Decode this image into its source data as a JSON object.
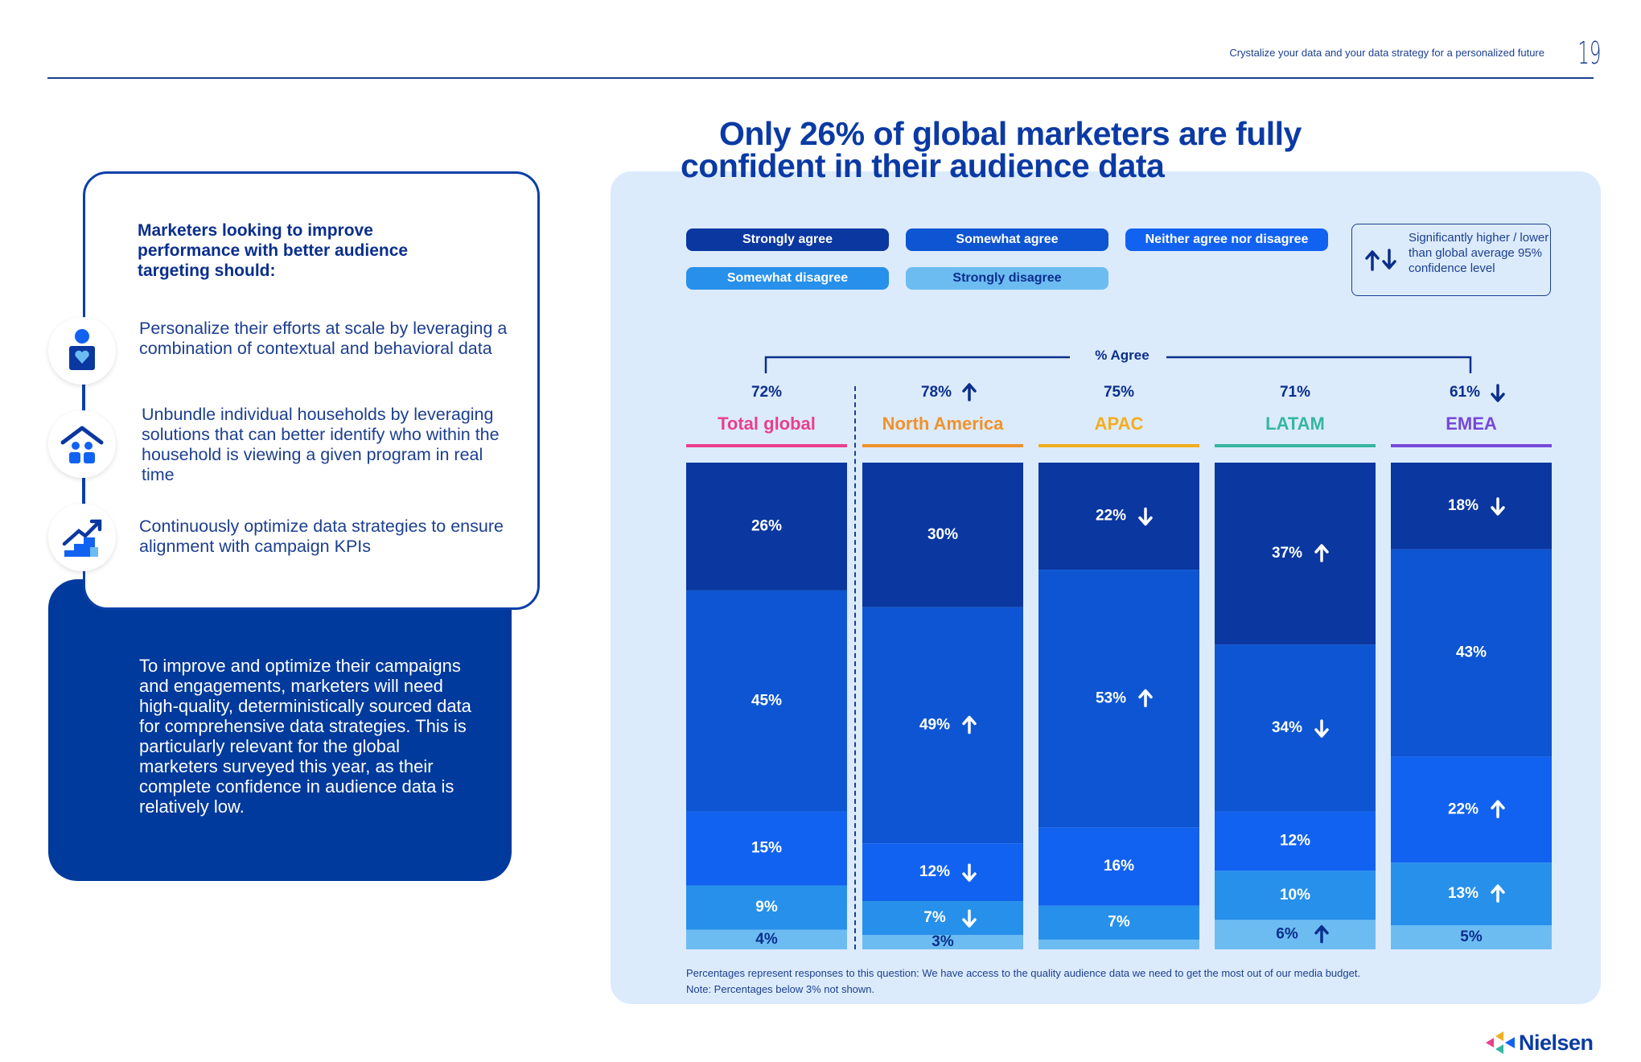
{
  "header": {
    "text": "Crystalize your data and your data strategy for a personalized future",
    "page_number": "19"
  },
  "left": {
    "heading": "Marketers looking to improve performance with better audience targeting should:",
    "tips": [
      {
        "icon": "person-heart-icon",
        "text": "Personalize their efforts at scale by leveraging a combination of contextual and behavioral data"
      },
      {
        "icon": "household-icon",
        "text": "Unbundle individual households by leveraging solutions that can better identify who within the household is viewing a given program in real time"
      },
      {
        "icon": "growth-stairs-icon",
        "text": "Continuously optimize data strategies to ensure alignment with campaign KPIs"
      }
    ],
    "body": "To improve and optimize their campaigns and engagements, marketers will need high-quality, deterministically sourced data for comprehensive data strategies. This is particularly relevant for the global marketers surveyed this year, as their complete confidence in audience data is relatively low."
  },
  "chart": {
    "title_line1": "Only 26% of global marketers are fully",
    "title_line2": "confident in their audience data",
    "significance_note": "Significantly higher / lower than global average 95% confidence level",
    "agree_label": "% Agree",
    "footnote1": "Percentages represent responses to this question: We have access to the quality audience data we need to get the most out of our media budget.",
    "footnote2": "Note: Percentages below 3% not shown."
  },
  "colors": {
    "strongly_agree": "#0a37a0",
    "somewhat_agree": "#0d55d3",
    "neither": "#1262f2",
    "somewhat_disagree": "#2790ea",
    "strongly_disagree": "#6cbcf2",
    "total_global": "#ea3f8e",
    "north_america": "#f0922b",
    "apac": "#f3ad1d",
    "latam": "#35b6a3",
    "emea": "#7548d9"
  },
  "chart_data": {
    "type": "bar",
    "stacked": true,
    "normalized_percent": true,
    "categories": [
      "Total global",
      "North America",
      "APAC",
      "LATAM",
      "EMEA"
    ],
    "agree_totals": [
      "72%",
      "78%",
      "75%",
      "71%",
      "61%"
    ],
    "agree_significance": [
      "",
      "up",
      "",
      "",
      "down"
    ],
    "series": [
      {
        "name": "Strongly agree",
        "values": [
          26,
          30,
          22,
          37,
          18
        ],
        "labels": [
          "26%",
          "30%",
          "22%",
          "37%",
          "18%"
        ],
        "significance": [
          "",
          "",
          "down",
          "up",
          "down"
        ],
        "color": "#0a37a0"
      },
      {
        "name": "Somewhat agree",
        "values": [
          45,
          49,
          53,
          34,
          43
        ],
        "labels": [
          "45%",
          "49%",
          "53%",
          "34%",
          "43%"
        ],
        "significance": [
          "",
          "up",
          "up",
          "down",
          ""
        ],
        "color": "#0d55d3"
      },
      {
        "name": "Neither agree nor disagree",
        "values": [
          15,
          12,
          16,
          12,
          22
        ],
        "labels": [
          "15%",
          "12%",
          "16%",
          "12%",
          "22%"
        ],
        "significance": [
          "",
          "down",
          "",
          "",
          "up"
        ],
        "color": "#1262f2"
      },
      {
        "name": "Somewhat disagree",
        "values": [
          9,
          7,
          7,
          10,
          13
        ],
        "labels": [
          "9%",
          "7%",
          "7%",
          "10%",
          "13%"
        ],
        "significance": [
          "",
          "down",
          "",
          "",
          "up"
        ],
        "color": "#2790ea"
      },
      {
        "name": "Strongly disagree",
        "values": [
          4,
          3,
          2,
          6,
          5
        ],
        "labels": [
          "4%",
          "3%",
          "",
          "6%",
          "5%"
        ],
        "significance": [
          "",
          "",
          "",
          "up",
          ""
        ],
        "color": "#6cbcf2"
      }
    ],
    "legend_position": "top"
  },
  "brand": {
    "logo_text": "Nielsen"
  }
}
